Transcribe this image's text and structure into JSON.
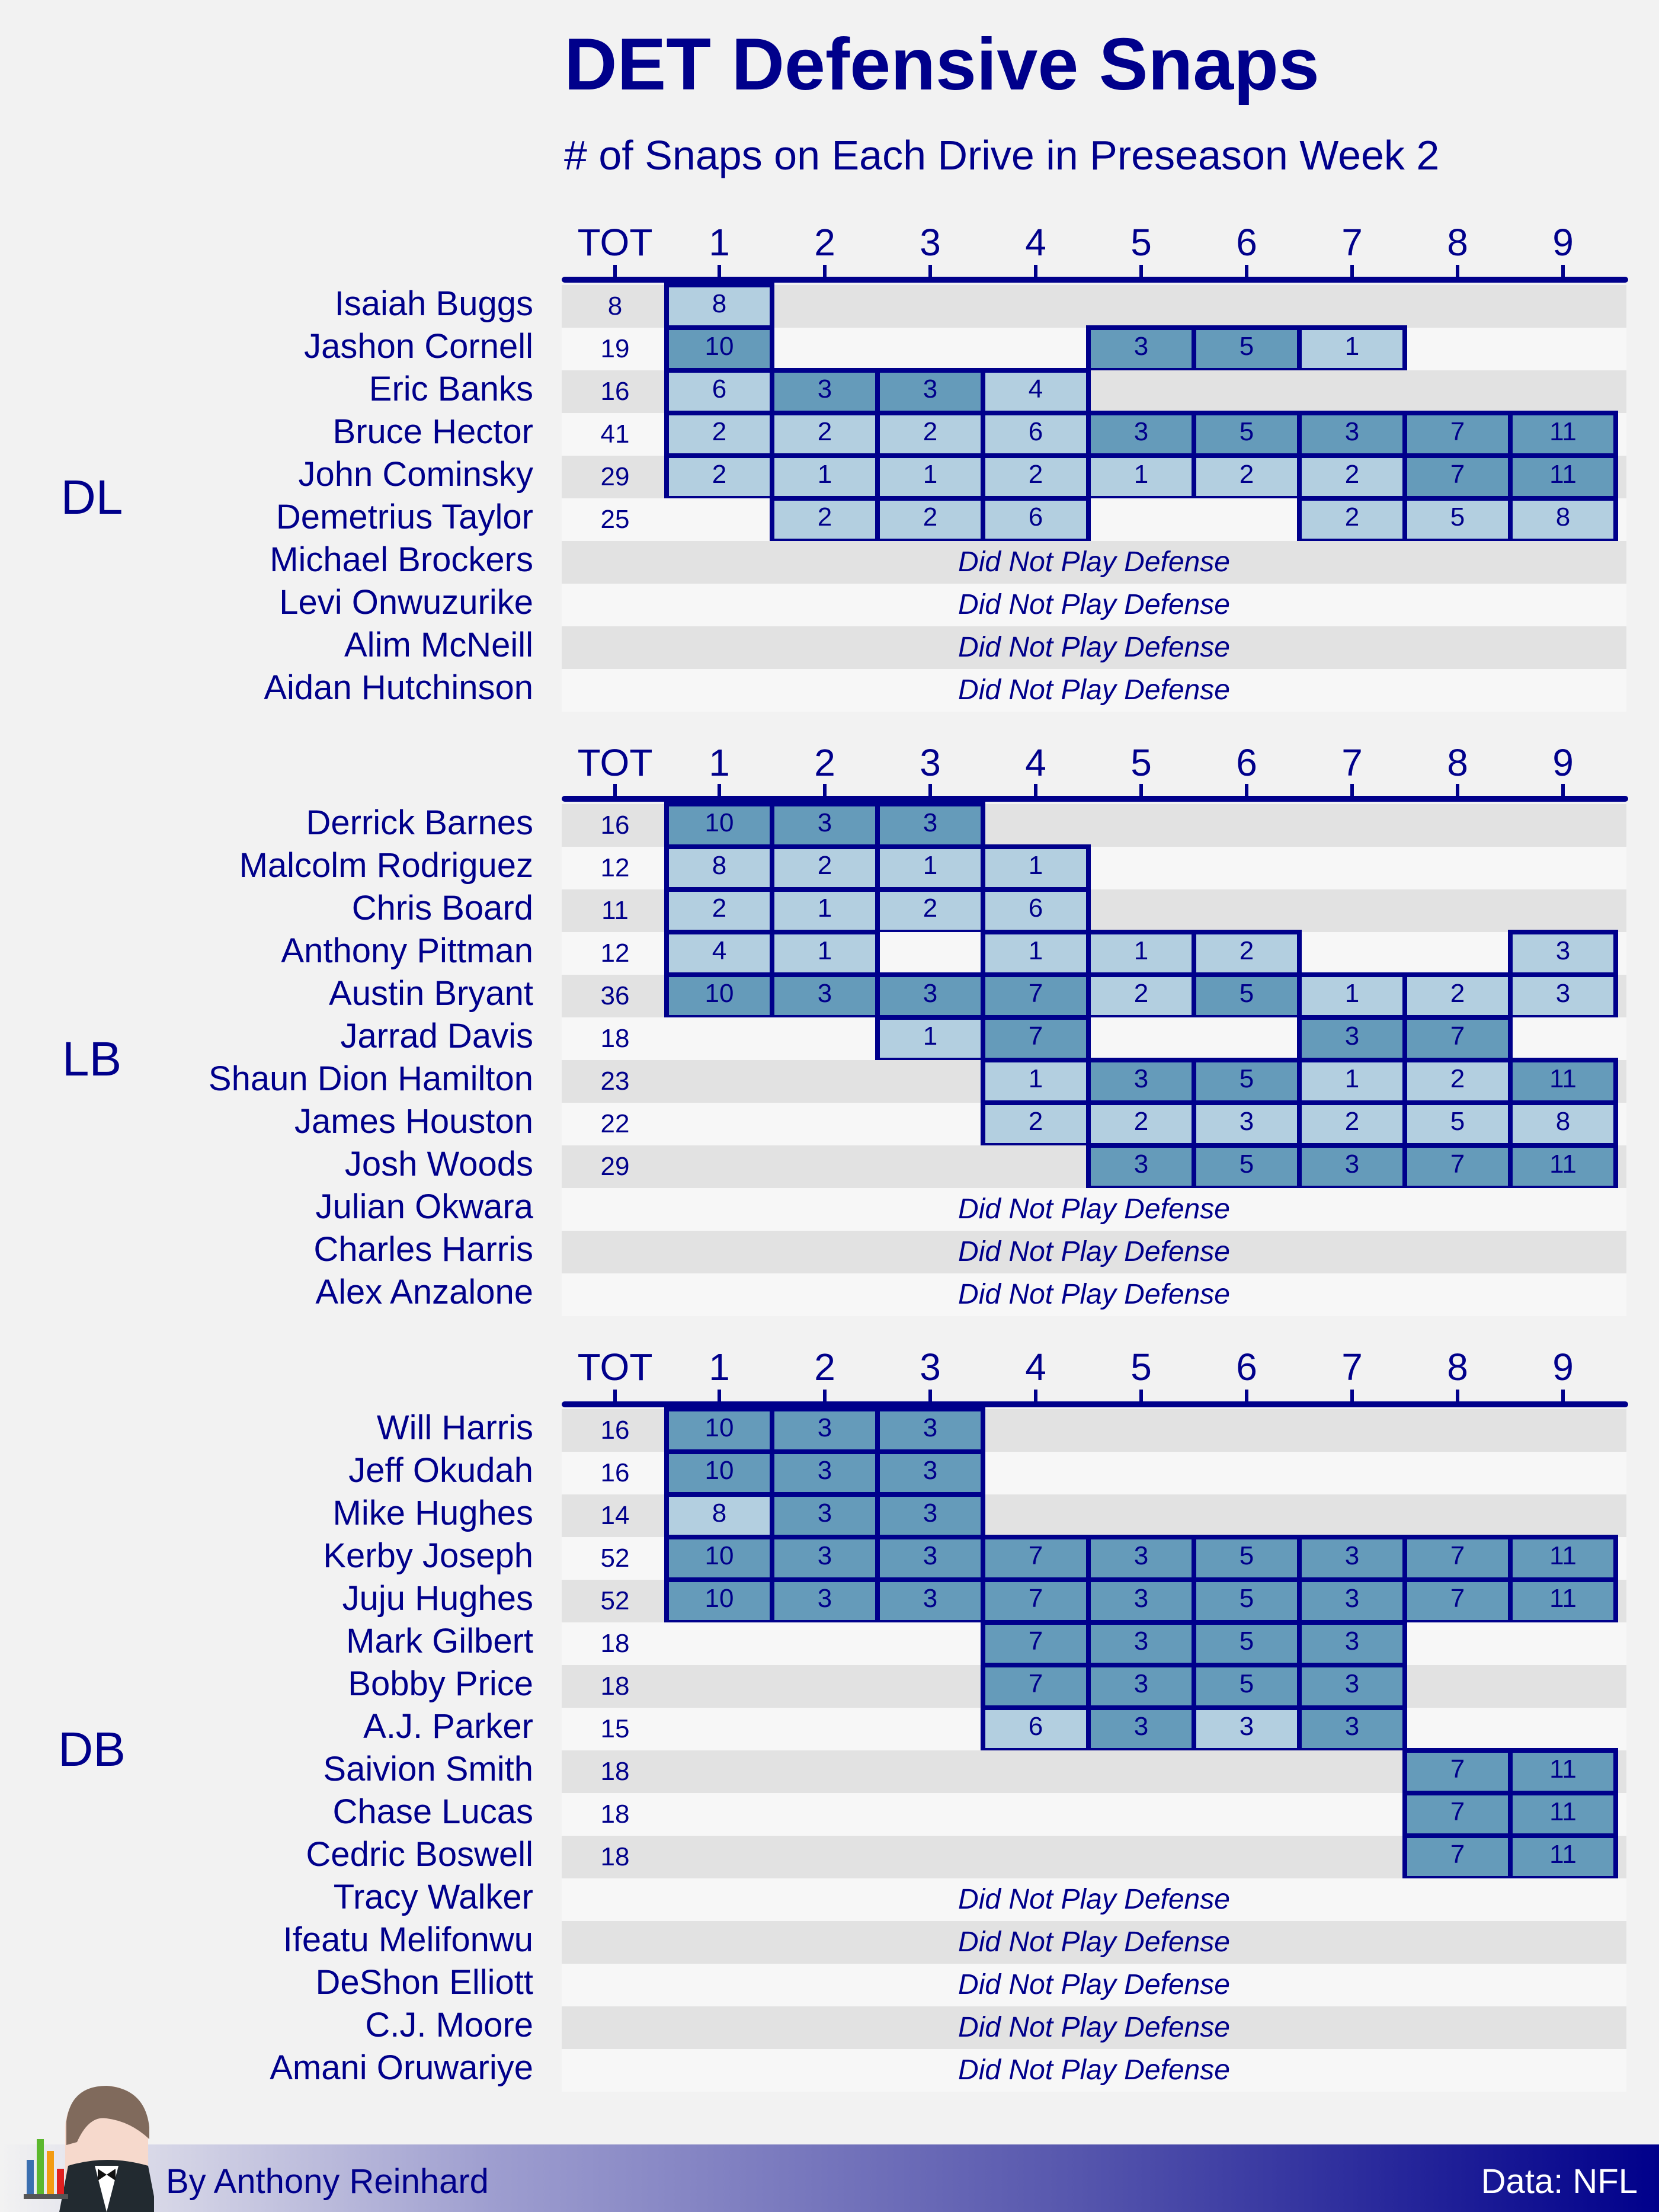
{
  "title": "DET Defensive Snaps",
  "subtitle": "# of Snaps on Each Drive in Preseason Week 2",
  "footer": {
    "credit": "By Anthony Reinhard",
    "source": "Data: NFL"
  },
  "colors": {
    "text": "#00008b",
    "full_drive": "#659bba",
    "partial_drive": "#b3cfe0",
    "row_a": "#e2e2e2",
    "row_b": "#f7f7f7",
    "background": "#f2f2f2"
  },
  "chart_data": {
    "type": "table",
    "columns": [
      "TOT",
      "1",
      "2",
      "3",
      "4",
      "5",
      "6",
      "7",
      "8",
      "9"
    ],
    "dnp_label": "Did Not Play Defense",
    "sections": [
      {
        "position": "DL",
        "players": [
          {
            "name": "Isaiah Buggs",
            "tot": 8,
            "drives": [
              8,
              null,
              null,
              null,
              null,
              null,
              null,
              null,
              null
            ]
          },
          {
            "name": "Jashon Cornell",
            "tot": 19,
            "drives": [
              10,
              null,
              null,
              null,
              3,
              5,
              1,
              null,
              null
            ]
          },
          {
            "name": "Eric Banks",
            "tot": 16,
            "drives": [
              6,
              3,
              3,
              4,
              null,
              null,
              null,
              null,
              null
            ]
          },
          {
            "name": "Bruce Hector",
            "tot": 41,
            "drives": [
              2,
              2,
              2,
              6,
              3,
              5,
              3,
              7,
              11
            ]
          },
          {
            "name": "John Cominsky",
            "tot": 29,
            "drives": [
              2,
              1,
              1,
              2,
              1,
              2,
              2,
              7,
              11
            ]
          },
          {
            "name": "Demetrius Taylor",
            "tot": 25,
            "drives": [
              null,
              2,
              2,
              6,
              null,
              null,
              2,
              5,
              8
            ]
          },
          {
            "name": "Michael Brockers",
            "tot": null,
            "drives": null
          },
          {
            "name": "Levi Onwuzurike",
            "tot": null,
            "drives": null
          },
          {
            "name": "Alim McNeill",
            "tot": null,
            "drives": null
          },
          {
            "name": "Aidan Hutchinson",
            "tot": null,
            "drives": null
          }
        ]
      },
      {
        "position": "LB",
        "players": [
          {
            "name": "Derrick Barnes",
            "tot": 16,
            "drives": [
              10,
              3,
              3,
              null,
              null,
              null,
              null,
              null,
              null
            ]
          },
          {
            "name": "Malcolm Rodriguez",
            "tot": 12,
            "drives": [
              8,
              2,
              1,
              1,
              null,
              null,
              null,
              null,
              null
            ]
          },
          {
            "name": "Chris Board",
            "tot": 11,
            "drives": [
              2,
              1,
              2,
              6,
              null,
              null,
              null,
              null,
              null
            ]
          },
          {
            "name": "Anthony Pittman",
            "tot": 12,
            "drives": [
              4,
              1,
              null,
              1,
              1,
              2,
              null,
              null,
              3
            ]
          },
          {
            "name": "Austin Bryant",
            "tot": 36,
            "drives": [
              10,
              3,
              3,
              7,
              2,
              5,
              1,
              2,
              3
            ]
          },
          {
            "name": "Jarrad Davis",
            "tot": 18,
            "drives": [
              null,
              null,
              1,
              7,
              null,
              null,
              3,
              7,
              null
            ]
          },
          {
            "name": "Shaun Dion Hamilton",
            "tot": 23,
            "drives": [
              null,
              null,
              null,
              1,
              3,
              5,
              1,
              2,
              11
            ]
          },
          {
            "name": "James Houston",
            "tot": 22,
            "drives": [
              null,
              null,
              null,
              2,
              2,
              3,
              2,
              5,
              8
            ]
          },
          {
            "name": "Josh Woods",
            "tot": 29,
            "drives": [
              null,
              null,
              null,
              null,
              3,
              5,
              3,
              7,
              11
            ]
          },
          {
            "name": "Julian Okwara",
            "tot": null,
            "drives": null
          },
          {
            "name": "Charles Harris",
            "tot": null,
            "drives": null
          },
          {
            "name": "Alex Anzalone",
            "tot": null,
            "drives": null
          }
        ]
      },
      {
        "position": "DB",
        "players": [
          {
            "name": "Will Harris",
            "tot": 16,
            "drives": [
              10,
              3,
              3,
              null,
              null,
              null,
              null,
              null,
              null
            ]
          },
          {
            "name": "Jeff Okudah",
            "tot": 16,
            "drives": [
              10,
              3,
              3,
              null,
              null,
              null,
              null,
              null,
              null
            ]
          },
          {
            "name": "Mike Hughes",
            "tot": 14,
            "drives": [
              8,
              3,
              3,
              null,
              null,
              null,
              null,
              null,
              null
            ]
          },
          {
            "name": "Kerby Joseph",
            "tot": 52,
            "drives": [
              10,
              3,
              3,
              7,
              3,
              5,
              3,
              7,
              11
            ]
          },
          {
            "name": "Juju Hughes",
            "tot": 52,
            "drives": [
              10,
              3,
              3,
              7,
              3,
              5,
              3,
              7,
              11
            ]
          },
          {
            "name": "Mark Gilbert",
            "tot": 18,
            "drives": [
              null,
              null,
              null,
              7,
              3,
              5,
              3,
              null,
              null
            ]
          },
          {
            "name": "Bobby Price",
            "tot": 18,
            "drives": [
              null,
              null,
              null,
              7,
              3,
              5,
              3,
              null,
              null
            ]
          },
          {
            "name": "A.J. Parker",
            "tot": 15,
            "drives": [
              null,
              null,
              null,
              6,
              3,
              3,
              3,
              null,
              null
            ]
          },
          {
            "name": "Saivion Smith",
            "tot": 18,
            "drives": [
              null,
              null,
              null,
              null,
              null,
              null,
              null,
              7,
              11
            ]
          },
          {
            "name": "Chase Lucas",
            "tot": 18,
            "drives": [
              null,
              null,
              null,
              null,
              null,
              null,
              null,
              7,
              11
            ]
          },
          {
            "name": "Cedric Boswell",
            "tot": 18,
            "drives": [
              null,
              null,
              null,
              null,
              null,
              null,
              null,
              7,
              11
            ]
          },
          {
            "name": "Tracy Walker",
            "tot": null,
            "drives": null
          },
          {
            "name": "Ifeatu Melifonwu",
            "tot": null,
            "drives": null
          },
          {
            "name": "DeShon Elliott",
            "tot": null,
            "drives": null
          },
          {
            "name": "C.J. Moore",
            "tot": null,
            "drives": null
          },
          {
            "name": "Amani Oruwariye",
            "tot": null,
            "drives": null
          }
        ]
      }
    ]
  }
}
